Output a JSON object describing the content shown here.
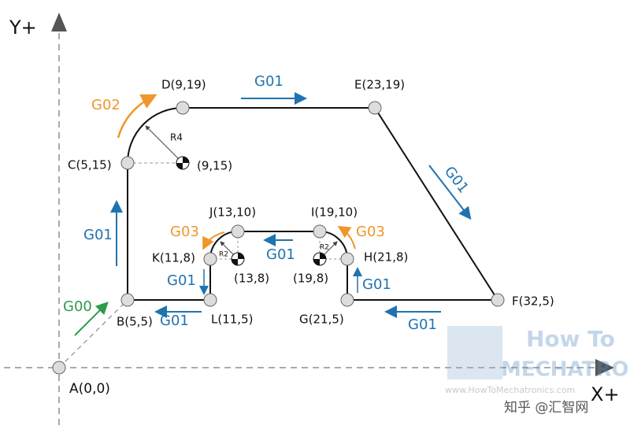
{
  "axes": {
    "y_label": "Y+",
    "x_label": "X+"
  },
  "points": [
    "A(0,0)",
    "B(5,5)",
    "C(5,15)",
    "D(9,19)",
    "E(23,19)",
    "F(32,5)",
    "G(21,5)",
    "H(21,8)",
    "I(19,10)",
    "J(13,10)",
    "K(11,8)",
    "L(11,5)"
  ],
  "centers": [
    "(9,15)",
    "(13,8)",
    "(19,8)"
  ],
  "radii": [
    "R4",
    "R2",
    "R2"
  ],
  "gcodes": [
    "G00",
    "G01",
    "G01",
    "G01",
    "G01",
    "G01",
    "G01",
    "G01",
    "G01",
    "G02",
    "G03",
    "G03"
  ],
  "watermark": {
    "line1": "How To",
    "line2": "MECHATRONICS",
    "url": "www.HowToMechatronics.com",
    "credit": "知乎 @汇智网"
  }
}
